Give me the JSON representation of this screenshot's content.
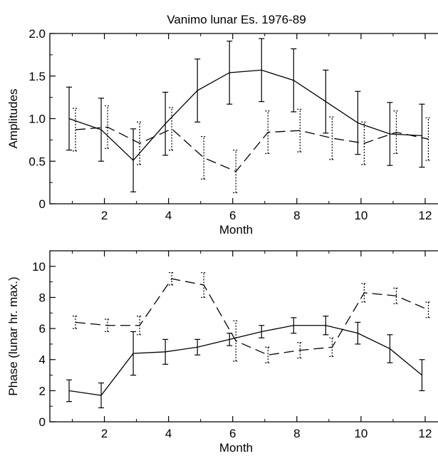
{
  "chart_data": [
    {
      "type": "line",
      "title": "Vanimo lunar Es. 1976-89",
      "xlabel": "Month",
      "ylabel": "Amplitudes",
      "xlim": [
        0.3,
        12.4
      ],
      "ylim": [
        0,
        2.0
      ],
      "x_ticks": [
        2,
        4,
        6,
        8,
        10,
        12
      ],
      "y_ticks": [
        0,
        0.5,
        1.0,
        1.5,
        2.0
      ],
      "y_tick_labels": [
        "0",
        "0.5",
        "1.0",
        "1.5",
        "2.0"
      ],
      "grid": false,
      "series": [
        {
          "style": "solid",
          "errorbar_style": "solid",
          "x": [
            1,
            2,
            3,
            4,
            5,
            6,
            7,
            8,
            9,
            10,
            11,
            12
          ],
          "y": [
            1.0,
            0.87,
            0.51,
            0.94,
            1.33,
            1.54,
            1.57,
            1.45,
            1.2,
            0.95,
            0.82,
            0.8
          ],
          "err": [
            0.37,
            0.37,
            0.37,
            0.37,
            0.37,
            0.37,
            0.37,
            0.37,
            0.37,
            0.37,
            0.37,
            0.37
          ],
          "x_offset": -0.1
        },
        {
          "style": "dashed",
          "errorbar_style": "dotted",
          "x": [
            1,
            2,
            3,
            4,
            5,
            6,
            7,
            8,
            9,
            10,
            11,
            12
          ],
          "y": [
            0.87,
            0.9,
            0.71,
            0.88,
            0.54,
            0.38,
            0.84,
            0.86,
            0.77,
            0.71,
            0.84,
            0.76
          ],
          "err": [
            0.25,
            0.25,
            0.25,
            0.25,
            0.25,
            0.25,
            0.25,
            0.25,
            0.25,
            0.25,
            0.25,
            0.25
          ],
          "x_offset": 0.1
        }
      ]
    },
    {
      "type": "line",
      "xlabel": "Month",
      "ylabel": "Phase (lunar hr. max.)",
      "xlim": [
        0.3,
        12.4
      ],
      "ylim": [
        0,
        11
      ],
      "x_ticks": [
        2,
        4,
        6,
        8,
        10,
        12
      ],
      "y_ticks": [
        0,
        2,
        4,
        6,
        8,
        10
      ],
      "y_tick_labels": [
        "0",
        "2",
        "4",
        "6",
        "8",
        "10"
      ],
      "grid": false,
      "series": [
        {
          "style": "solid",
          "errorbar_style": "solid",
          "x": [
            1,
            2,
            3,
            4,
            5,
            6,
            7,
            8,
            9,
            10,
            11,
            12
          ],
          "y": [
            2.0,
            1.7,
            4.4,
            4.5,
            4.8,
            5.3,
            5.8,
            6.2,
            6.2,
            5.7,
            4.7,
            3.0
          ],
          "err": [
            0.7,
            0.8,
            1.4,
            0.8,
            0.5,
            0.4,
            0.4,
            0.5,
            0.6,
            0.7,
            0.9,
            1.0
          ],
          "x_offset": -0.1
        },
        {
          "style": "dashed",
          "errorbar_style": "dotted",
          "x": [
            1,
            2,
            3,
            4,
            5,
            6,
            7,
            8,
            9,
            10,
            11,
            12
          ],
          "y": [
            6.4,
            6.2,
            6.2,
            9.2,
            8.8,
            5.2,
            4.3,
            4.6,
            4.8,
            8.3,
            8.1,
            7.2
          ],
          "err": [
            0.4,
            0.4,
            0.6,
            0.4,
            0.8,
            1.3,
            0.5,
            0.5,
            0.6,
            0.6,
            0.5,
            0.5
          ],
          "x_offset": 0.1
        }
      ]
    }
  ]
}
